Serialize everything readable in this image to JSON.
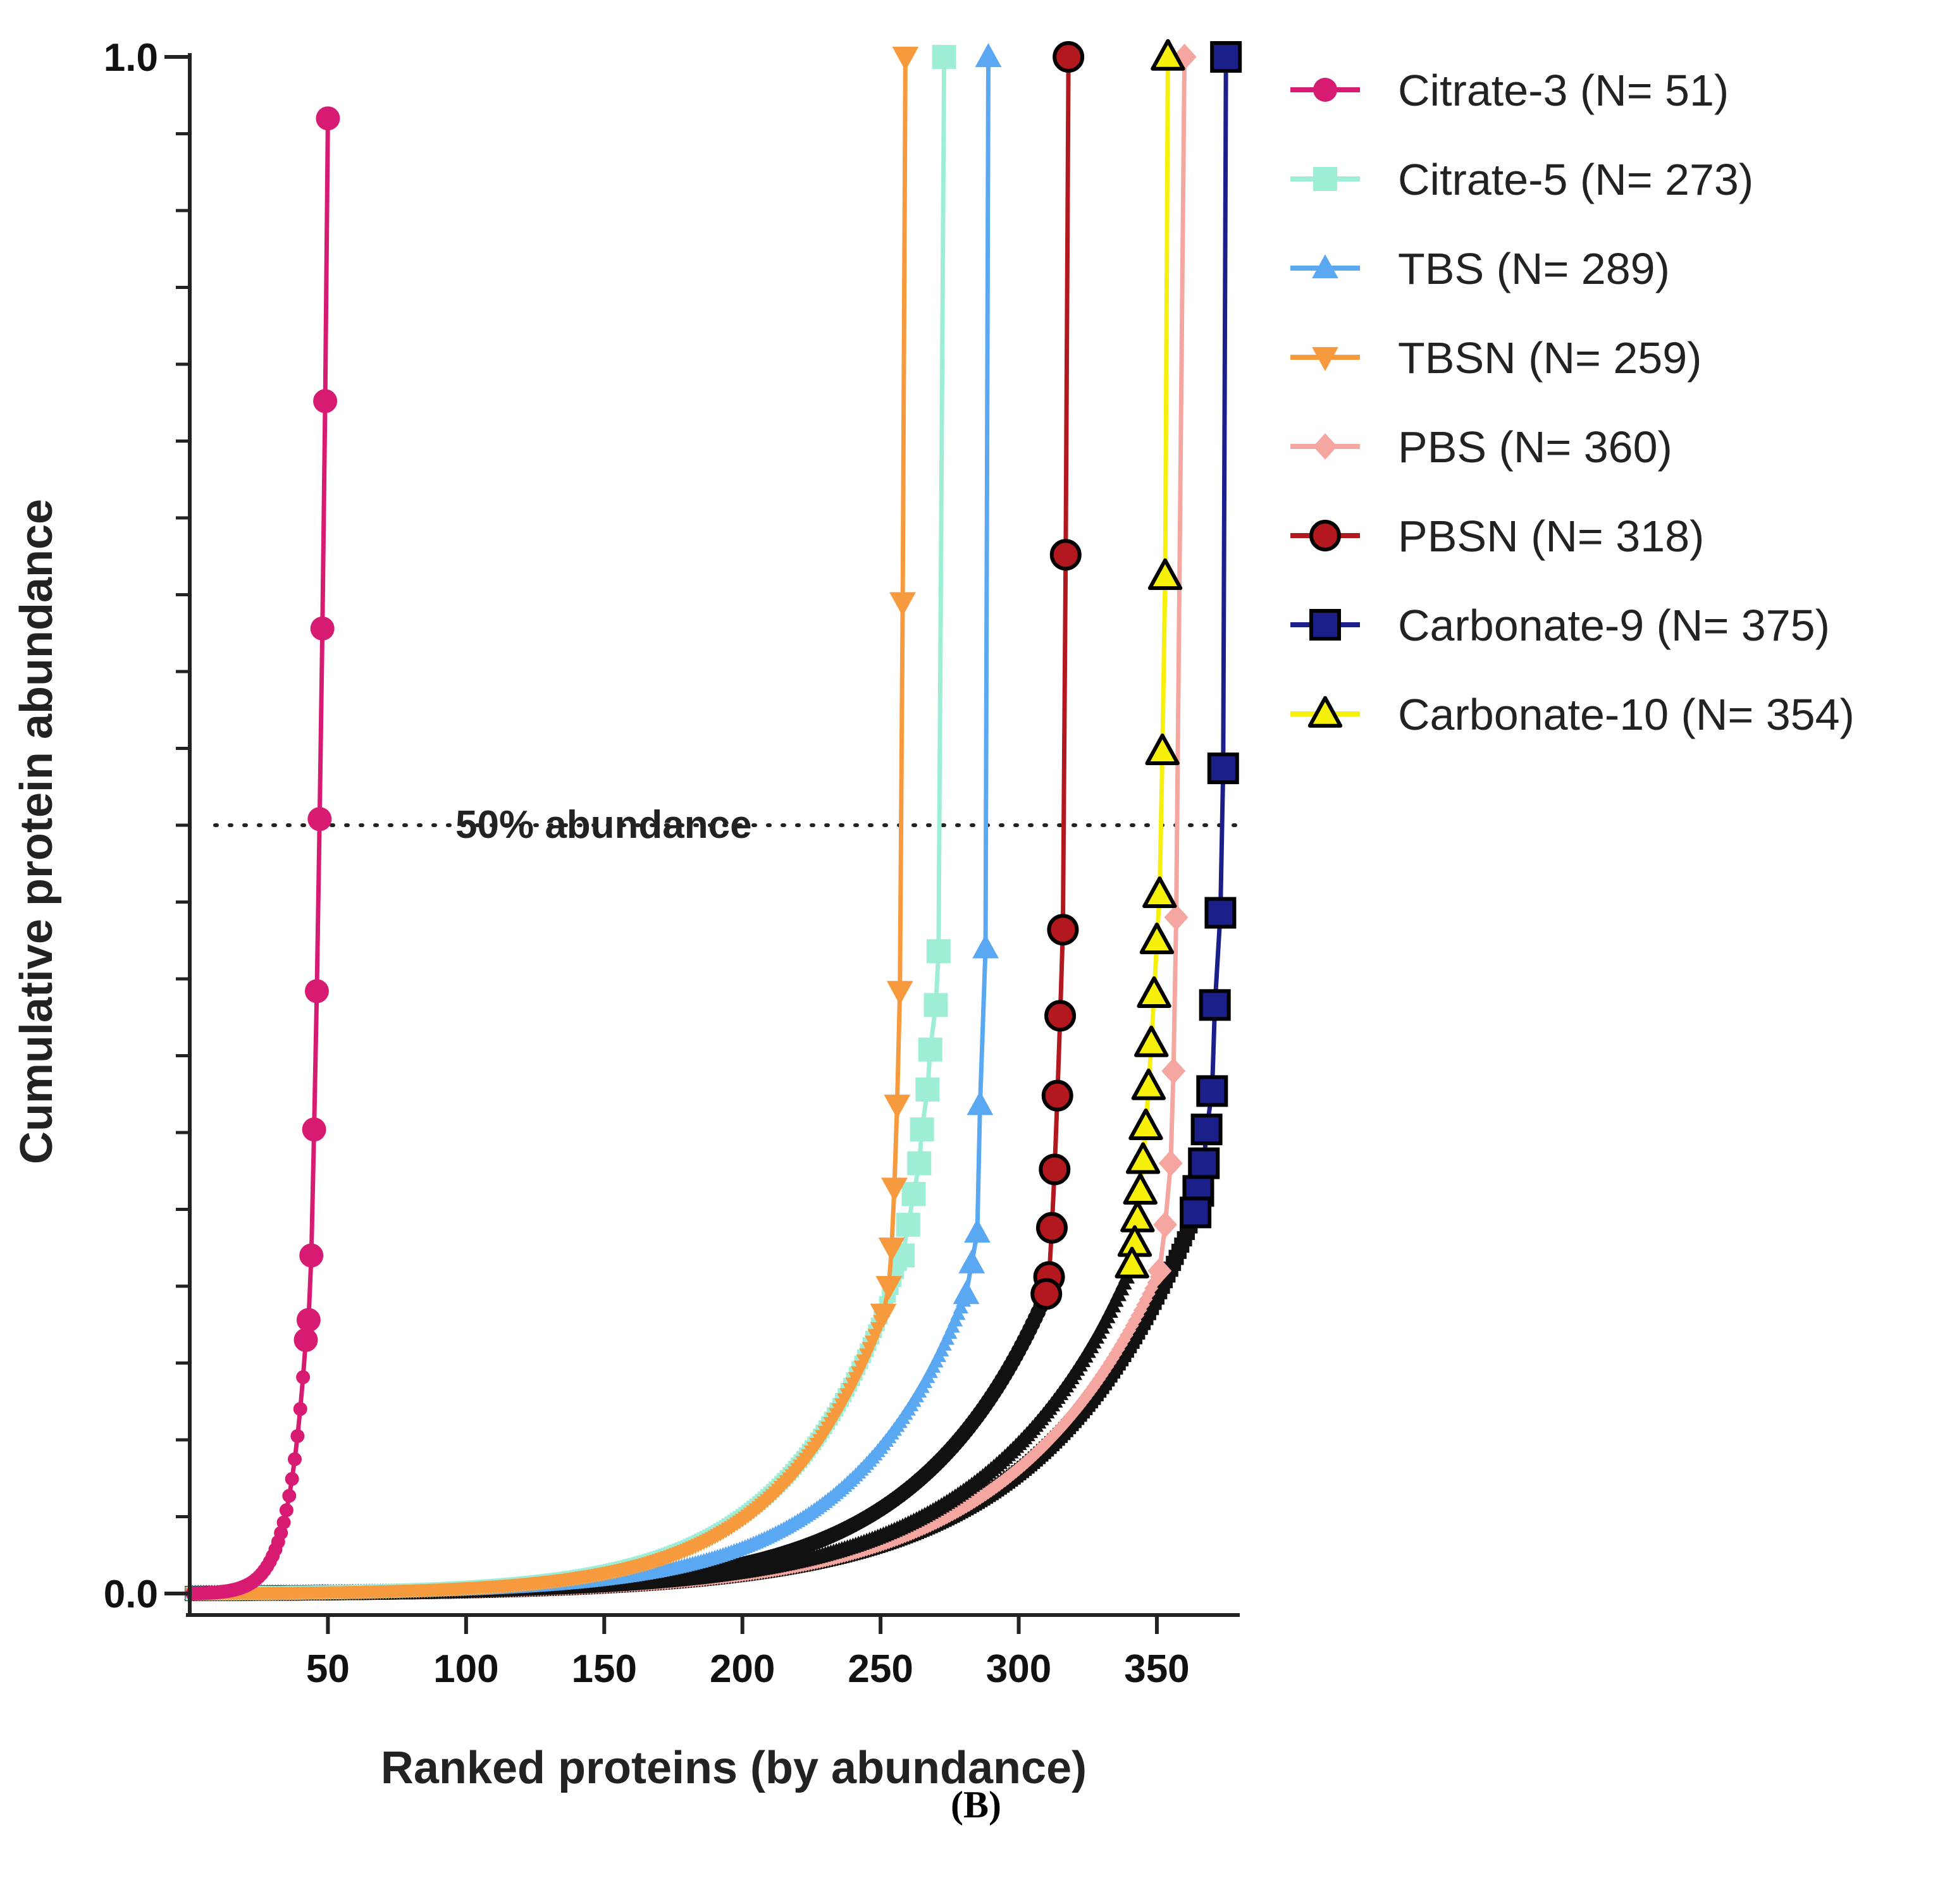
{
  "chart_data": {
    "type": "line",
    "title": "",
    "xlabel": "Ranked proteins (by abundance)",
    "ylabel": "Cumulative protein abundance",
    "xlim": [
      0,
      380
    ],
    "ylim": [
      0,
      1
    ],
    "x_ticks": [
      50,
      100,
      150,
      200,
      250,
      300,
      350
    ],
    "y_ticks": [
      0.0,
      1.0
    ],
    "y_tick_labels": [
      "0.0",
      "1.0"
    ],
    "grid": false,
    "legend_position": "right",
    "reference_line": {
      "y": 0.5,
      "label": "50% abundance",
      "style": "dotted"
    },
    "series": [
      {
        "name": "Citrate-3 (N= 51)",
        "n": 51,
        "color": "#d81b72",
        "marker": "circle",
        "filled": true,
        "end_y": 0.96,
        "top_points": [
          [
            50,
            0.96
          ],
          [
            49,
            0.776
          ],
          [
            48,
            0.628
          ],
          [
            47,
            0.504
          ],
          [
            46,
            0.392
          ],
          [
            45,
            0.302
          ],
          [
            44,
            0.22
          ],
          [
            43,
            0.178
          ],
          [
            42,
            0.165
          ]
        ]
      },
      {
        "name": "Citrate-5 (N= 273)",
        "n": 273,
        "color": "#9eeed7",
        "marker": "square",
        "filled": true,
        "end_y": 1.0,
        "top_points": [
          [
            273,
            1.0
          ],
          [
            271,
            0.418
          ],
          [
            270,
            0.383
          ],
          [
            268,
            0.354
          ],
          [
            267,
            0.328
          ],
          [
            265,
            0.302
          ],
          [
            264,
            0.28
          ],
          [
            262,
            0.26
          ],
          [
            260,
            0.24
          ],
          [
            258,
            0.22
          ]
        ]
      },
      {
        "name": "TBS (N= 289)",
        "n": 289,
        "color": "#5aa8f2",
        "marker": "triangle-up",
        "filled": true,
        "end_y": 1.0,
        "top_points": [
          [
            289,
            1.0
          ],
          [
            288,
            0.42
          ],
          [
            286,
            0.318
          ],
          [
            285,
            0.235
          ],
          [
            283,
            0.215
          ],
          [
            281,
            0.195
          ]
        ]
      },
      {
        "name": "TBSN (N= 259)",
        "n": 259,
        "color": "#f79a3e",
        "marker": "triangle-down",
        "filled": true,
        "end_y": 1.0,
        "top_points": [
          [
            259,
            1.0
          ],
          [
            258,
            0.645
          ],
          [
            257,
            0.392
          ],
          [
            256,
            0.318
          ],
          [
            255,
            0.264
          ],
          [
            254,
            0.225
          ],
          [
            253,
            0.2
          ],
          [
            251,
            0.182
          ]
        ]
      },
      {
        "name": "PBS (N= 360)",
        "n": 360,
        "color": "#f5a6a0",
        "marker": "diamond",
        "filled": true,
        "end_y": 1.0,
        "top_points": [
          [
            360,
            1.0
          ],
          [
            357,
            0.44
          ],
          [
            356,
            0.34
          ],
          [
            355,
            0.28
          ],
          [
            353,
            0.24
          ],
          [
            351,
            0.21
          ]
        ]
      },
      {
        "name": "PBSN (N= 318)",
        "n": 318,
        "color": "#b3181e",
        "marker": "circle",
        "filled": true,
        "edge": "#000000",
        "end_y": 1.0,
        "top_points": [
          [
            318,
            1.0
          ],
          [
            317,
            0.676
          ],
          [
            316,
            0.432
          ],
          [
            315,
            0.376
          ],
          [
            314,
            0.324
          ],
          [
            313,
            0.276
          ],
          [
            312,
            0.238
          ],
          [
            311,
            0.206
          ],
          [
            310,
            0.195
          ]
        ]
      },
      {
        "name": "Carbonate-9 (N= 375)",
        "n": 375,
        "color": "#1a1f8a",
        "marker": "square",
        "filled": true,
        "edge": "#000000",
        "end_y": 1.0,
        "top_points": [
          [
            375,
            1.0
          ],
          [
            374,
            0.537
          ],
          [
            373,
            0.443
          ],
          [
            371,
            0.383
          ],
          [
            370,
            0.327
          ],
          [
            368,
            0.302
          ],
          [
            367,
            0.28
          ],
          [
            365,
            0.262
          ],
          [
            364,
            0.248
          ]
        ]
      },
      {
        "name": "Carbonate-10 (N= 354)",
        "n": 354,
        "color": "#f7f00a",
        "marker": "triangle-up",
        "filled": true,
        "edge": "#000000",
        "end_y": 1.0,
        "top_points": [
          [
            354,
            1.0
          ],
          [
            353,
            0.662
          ],
          [
            352,
            0.548
          ],
          [
            351,
            0.455
          ],
          [
            350,
            0.425
          ],
          [
            349,
            0.39
          ],
          [
            348,
            0.358
          ],
          [
            347,
            0.33
          ],
          [
            346,
            0.304
          ],
          [
            345,
            0.282
          ],
          [
            344,
            0.262
          ],
          [
            343,
            0.244
          ],
          [
            342,
            0.228
          ],
          [
            341,
            0.214
          ]
        ]
      }
    ]
  },
  "panel_label": "(B)"
}
